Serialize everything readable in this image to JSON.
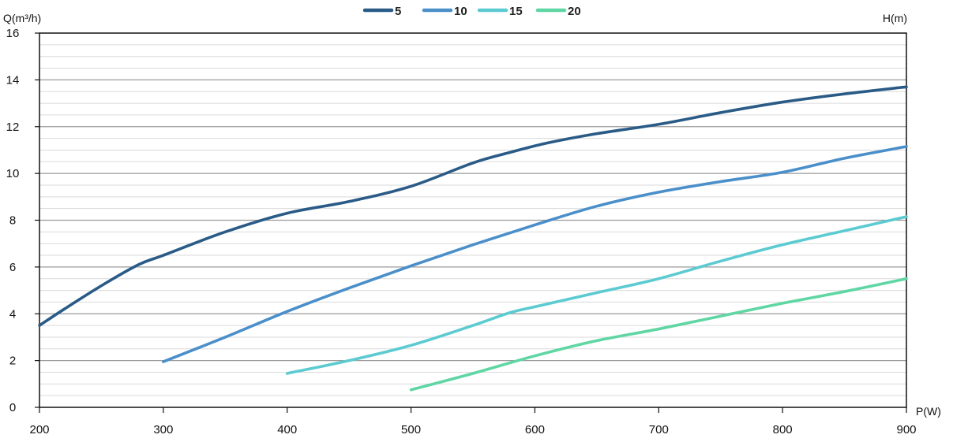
{
  "chart_data": {
    "type": "line",
    "title": "",
    "ylabel": "Q(m³/h)",
    "xlabel": "P(W)",
    "secondary_label": "H(m)",
    "xlim": [
      200,
      900
    ],
    "ylim": [
      0,
      16
    ],
    "x_ticks": [
      "200",
      "300",
      "400",
      "500",
      "600",
      "700",
      "800",
      "900"
    ],
    "y_ticks": [
      "0",
      "2",
      "4",
      "6",
      "8",
      "10",
      "12",
      "14",
      "16"
    ],
    "grid": true,
    "legend_position": "top-center",
    "series": [
      {
        "name": "5",
        "color": "#2a5b87",
        "points": [
          [
            200,
            3.5
          ],
          [
            220,
            4.2
          ],
          [
            250,
            5.2
          ],
          [
            280,
            6.1
          ],
          [
            300,
            6.5
          ],
          [
            350,
            7.5
          ],
          [
            400,
            8.3
          ],
          [
            450,
            8.8
          ],
          [
            500,
            9.45
          ],
          [
            550,
            10.45
          ],
          [
            580,
            10.9
          ],
          [
            610,
            11.3
          ],
          [
            650,
            11.7
          ],
          [
            700,
            12.1
          ],
          [
            750,
            12.6
          ],
          [
            800,
            13.05
          ],
          [
            850,
            13.4
          ],
          [
            900,
            13.7
          ]
        ]
      },
      {
        "name": "10",
        "color": "#4a8fca",
        "points": [
          [
            300,
            1.95
          ],
          [
            350,
            3.0
          ],
          [
            400,
            4.1
          ],
          [
            450,
            5.1
          ],
          [
            500,
            6.05
          ],
          [
            550,
            6.95
          ],
          [
            600,
            7.8
          ],
          [
            650,
            8.6
          ],
          [
            700,
            9.2
          ],
          [
            750,
            9.65
          ],
          [
            800,
            10.05
          ],
          [
            850,
            10.65
          ],
          [
            900,
            11.15
          ]
        ]
      },
      {
        "name": "15",
        "color": "#5ccbd1",
        "points": [
          [
            400,
            1.45
          ],
          [
            450,
            2.0
          ],
          [
            500,
            2.65
          ],
          [
            550,
            3.5
          ],
          [
            580,
            4.05
          ],
          [
            600,
            4.3
          ],
          [
            650,
            4.9
          ],
          [
            700,
            5.5
          ],
          [
            750,
            6.25
          ],
          [
            800,
            6.95
          ],
          [
            850,
            7.55
          ],
          [
            900,
            8.15
          ]
        ]
      },
      {
        "name": "20",
        "color": "#5fd6a3",
        "points": [
          [
            500,
            0.75
          ],
          [
            550,
            1.45
          ],
          [
            600,
            2.2
          ],
          [
            650,
            2.85
          ],
          [
            700,
            3.35
          ],
          [
            750,
            3.9
          ],
          [
            800,
            4.45
          ],
          [
            850,
            4.95
          ],
          [
            900,
            5.5
          ]
        ]
      }
    ]
  }
}
